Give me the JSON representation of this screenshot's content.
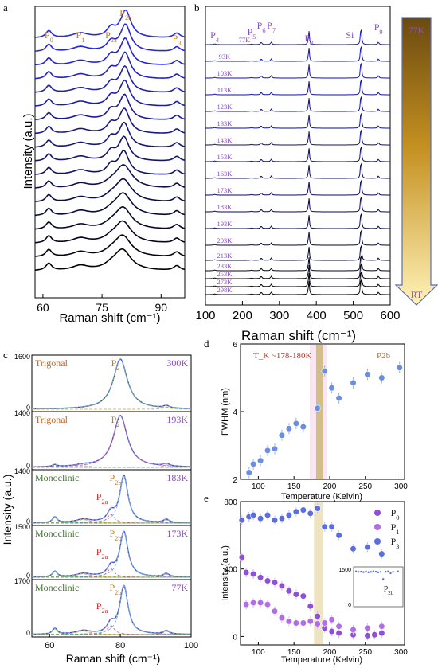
{
  "panels": {
    "a": {
      "label": "a",
      "xlabel": "Raman shift (cm⁻¹)",
      "ylabel": "Intensity (a.u.)",
      "xlim": [
        58,
        96
      ],
      "xticks": [
        "60",
        "75",
        "90"
      ],
      "peak_labels": [
        "P0",
        "P1",
        "P2a",
        "P2b",
        "P3"
      ],
      "peak_positions": [
        61.5,
        69.5,
        77.3,
        81.0,
        94.0
      ]
    },
    "b": {
      "label": "b",
      "xlabel": "Raman shift (cm⁻¹)",
      "xlim": [
        100,
        600
      ],
      "xticks": [
        "100",
        "200",
        "300",
        "400",
        "500",
        "600"
      ],
      "peak_labels": [
        "P4",
        "P5",
        "P6",
        "P7",
        "P8",
        "Si",
        "P9"
      ],
      "peak_positions": [
        125,
        225,
        251,
        278,
        380,
        521,
        568
      ],
      "temps": [
        "77K",
        "93K",
        "103K",
        "113K",
        "123K",
        "133K",
        "143K",
        "153K",
        "163K",
        "173K",
        "183K",
        "193K",
        "203K",
        "213K",
        "233K",
        "253K",
        "273K",
        "298K"
      ],
      "arrow_top": "77K",
      "arrow_bottom": "RT"
    },
    "c": {
      "label": "c",
      "xlabel": "Raman shift (cm⁻¹)",
      "ylabel": "Intensity (a.u.)",
      "xlim": [
        55,
        100
      ],
      "xticks": [
        "60",
        "80",
        "100"
      ],
      "subpanels": [
        {
          "phase": "Trigonal",
          "peak": "P2",
          "temp": "300K",
          "ymax": "1600"
        },
        {
          "phase": "Trigonal",
          "peak": "P2",
          "temp": "193K",
          "ymax": "1400"
        },
        {
          "phase": "Monoclinic",
          "peak": "P2b",
          "temp": "183K",
          "ymax": "1400",
          "sub": "P2a"
        },
        {
          "phase": "Monoclinic",
          "peak": "P2b",
          "temp": "173K",
          "ymax": "1500",
          "sub": "P2a"
        },
        {
          "phase": "Monoclinic",
          "peak": "P2b",
          "temp": "77K",
          "ymax": "1700",
          "sub": "P2a"
        }
      ]
    }
  },
  "chart_data": [
    {
      "type": "scatter",
      "panel": "d",
      "xlabel": "Temperature (Kelvin)",
      "ylabel": "FWHM (nm)",
      "xlim": [
        75,
        305
      ],
      "ylim": [
        2,
        6
      ],
      "xticks": [
        100,
        150,
        200,
        250,
        300
      ],
      "yticks": [
        2,
        4,
        6
      ],
      "annotation": "T_K ~178-180K",
      "series_label": "P2b",
      "series": [
        {
          "name": "P2b",
          "color": "#6b8fe0",
          "x": [
            87,
            93,
            103,
            113,
            123,
            133,
            143,
            153,
            163,
            183,
            193,
            203,
            213,
            233,
            253,
            273,
            298
          ],
          "y": [
            2.2,
            2.45,
            2.55,
            2.85,
            2.9,
            3.3,
            3.5,
            3.65,
            3.55,
            4.1,
            5.2,
            4.7,
            4.4,
            4.85,
            5.1,
            5.0,
            5.3
          ]
        }
      ]
    },
    {
      "type": "scatter",
      "panel": "e",
      "xlabel": "Temperature (Kelvin)",
      "ylabel": "Intensity (a.u.)",
      "xlim": [
        75,
        305
      ],
      "ylim": [
        -50,
        800
      ],
      "xticks": [
        100,
        150,
        200,
        250,
        300
      ],
      "yticks": [
        0,
        400,
        800
      ],
      "legend": "top-right",
      "series": [
        {
          "name": "P0",
          "color": "#8f4fd8",
          "x": [
            77,
            83,
            93,
            103,
            113,
            123,
            133,
            143,
            153,
            163,
            173,
            183,
            193,
            203,
            213,
            233,
            253,
            263,
            273
          ],
          "y": [
            470,
            380,
            370,
            350,
            330,
            320,
            300,
            270,
            250,
            240,
            180,
            120,
            50,
            30,
            20,
            10,
            5,
            10,
            20
          ]
        },
        {
          "name": "P1",
          "color": "#b26de6",
          "x": [
            83,
            93,
            103,
            113,
            123,
            133,
            143,
            153,
            163,
            173,
            183,
            193,
            203,
            213,
            233,
            253,
            273
          ],
          "y": [
            190,
            200,
            200,
            190,
            150,
            110,
            90,
            80,
            80,
            90,
            75,
            80,
            100,
            60,
            40,
            50,
            60
          ]
        },
        {
          "name": "P3",
          "color": "#5a6ee0",
          "x": [
            77,
            87,
            93,
            103,
            113,
            123,
            133,
            143,
            153,
            163,
            173,
            183,
            193,
            203,
            213,
            233,
            253,
            273
          ],
          "y": [
            690,
            710,
            720,
            700,
            720,
            690,
            700,
            720,
            740,
            750,
            730,
            760,
            650,
            650,
            600,
            520,
            530,
            490
          ]
        }
      ],
      "inset": {
        "label": "P2b",
        "ytick_top": "1500",
        "ytick_bottom": "0",
        "x": [
          0.05,
          0.1,
          0.15,
          0.2,
          0.25,
          0.3,
          0.35,
          0.4,
          0.45,
          0.5,
          0.55,
          0.6,
          0.65,
          0.7,
          0.75,
          0.8,
          0.9
        ],
        "y": [
          1500,
          1480,
          1490,
          1470,
          1500,
          1460,
          1480,
          1510,
          1490,
          1460,
          1480,
          1150,
          1490,
          1500,
          1420,
          1480,
          1500
        ]
      }
    }
  ]
}
